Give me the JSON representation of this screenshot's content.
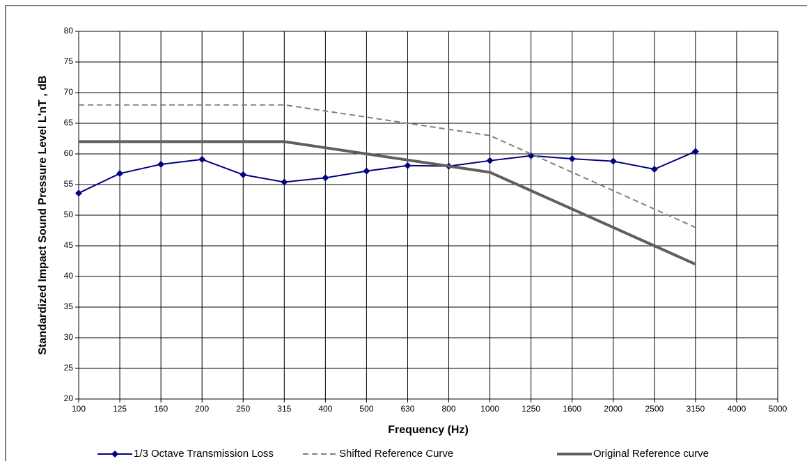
{
  "chart_data": {
    "type": "line",
    "x_label": "Frequency (Hz)",
    "y_label": "Standardized Impact Sound Pressure Level L'nT , dB",
    "categories": [
      "100",
      "125",
      "160",
      "200",
      "250",
      "315",
      "400",
      "500",
      "630",
      "800",
      "1000",
      "1250",
      "1600",
      "2000",
      "2500",
      "3150",
      "4000",
      "5000"
    ],
    "series": [
      {
        "name": "1/3 Octave Transmission Loss",
        "color": "#000080",
        "line_style": "solid",
        "line_width": 2,
        "marker": "diamond",
        "values": [
          53.6,
          56.8,
          58.3,
          59.1,
          56.6,
          55.4,
          56.1,
          57.2,
          58.1,
          58.0,
          58.9,
          59.7,
          59.2,
          58.8,
          57.5,
          60.4,
          null,
          null
        ]
      },
      {
        "name": "Shifted Reference Curve",
        "color": "#808080",
        "line_style": "dashed",
        "line_width": 2,
        "marker": "none",
        "values": [
          68,
          68,
          68,
          68,
          68,
          68,
          67,
          66,
          65,
          64,
          63,
          60,
          57,
          54,
          51,
          48,
          null,
          null
        ]
      },
      {
        "name": "Original Reference curve",
        "color": "#5f5f5f",
        "line_style": "solid",
        "line_width": 4,
        "marker": "none",
        "values": [
          62,
          62,
          62,
          62,
          62,
          62,
          61,
          60,
          59,
          58,
          57,
          54,
          51,
          48,
          45,
          42,
          null,
          null
        ]
      }
    ],
    "ylim": [
      20,
      80
    ],
    "yticks": [
      20,
      25,
      30,
      35,
      40,
      45,
      50,
      55,
      60,
      65,
      70,
      75,
      80
    ],
    "grid": true,
    "legend": "bottom"
  }
}
